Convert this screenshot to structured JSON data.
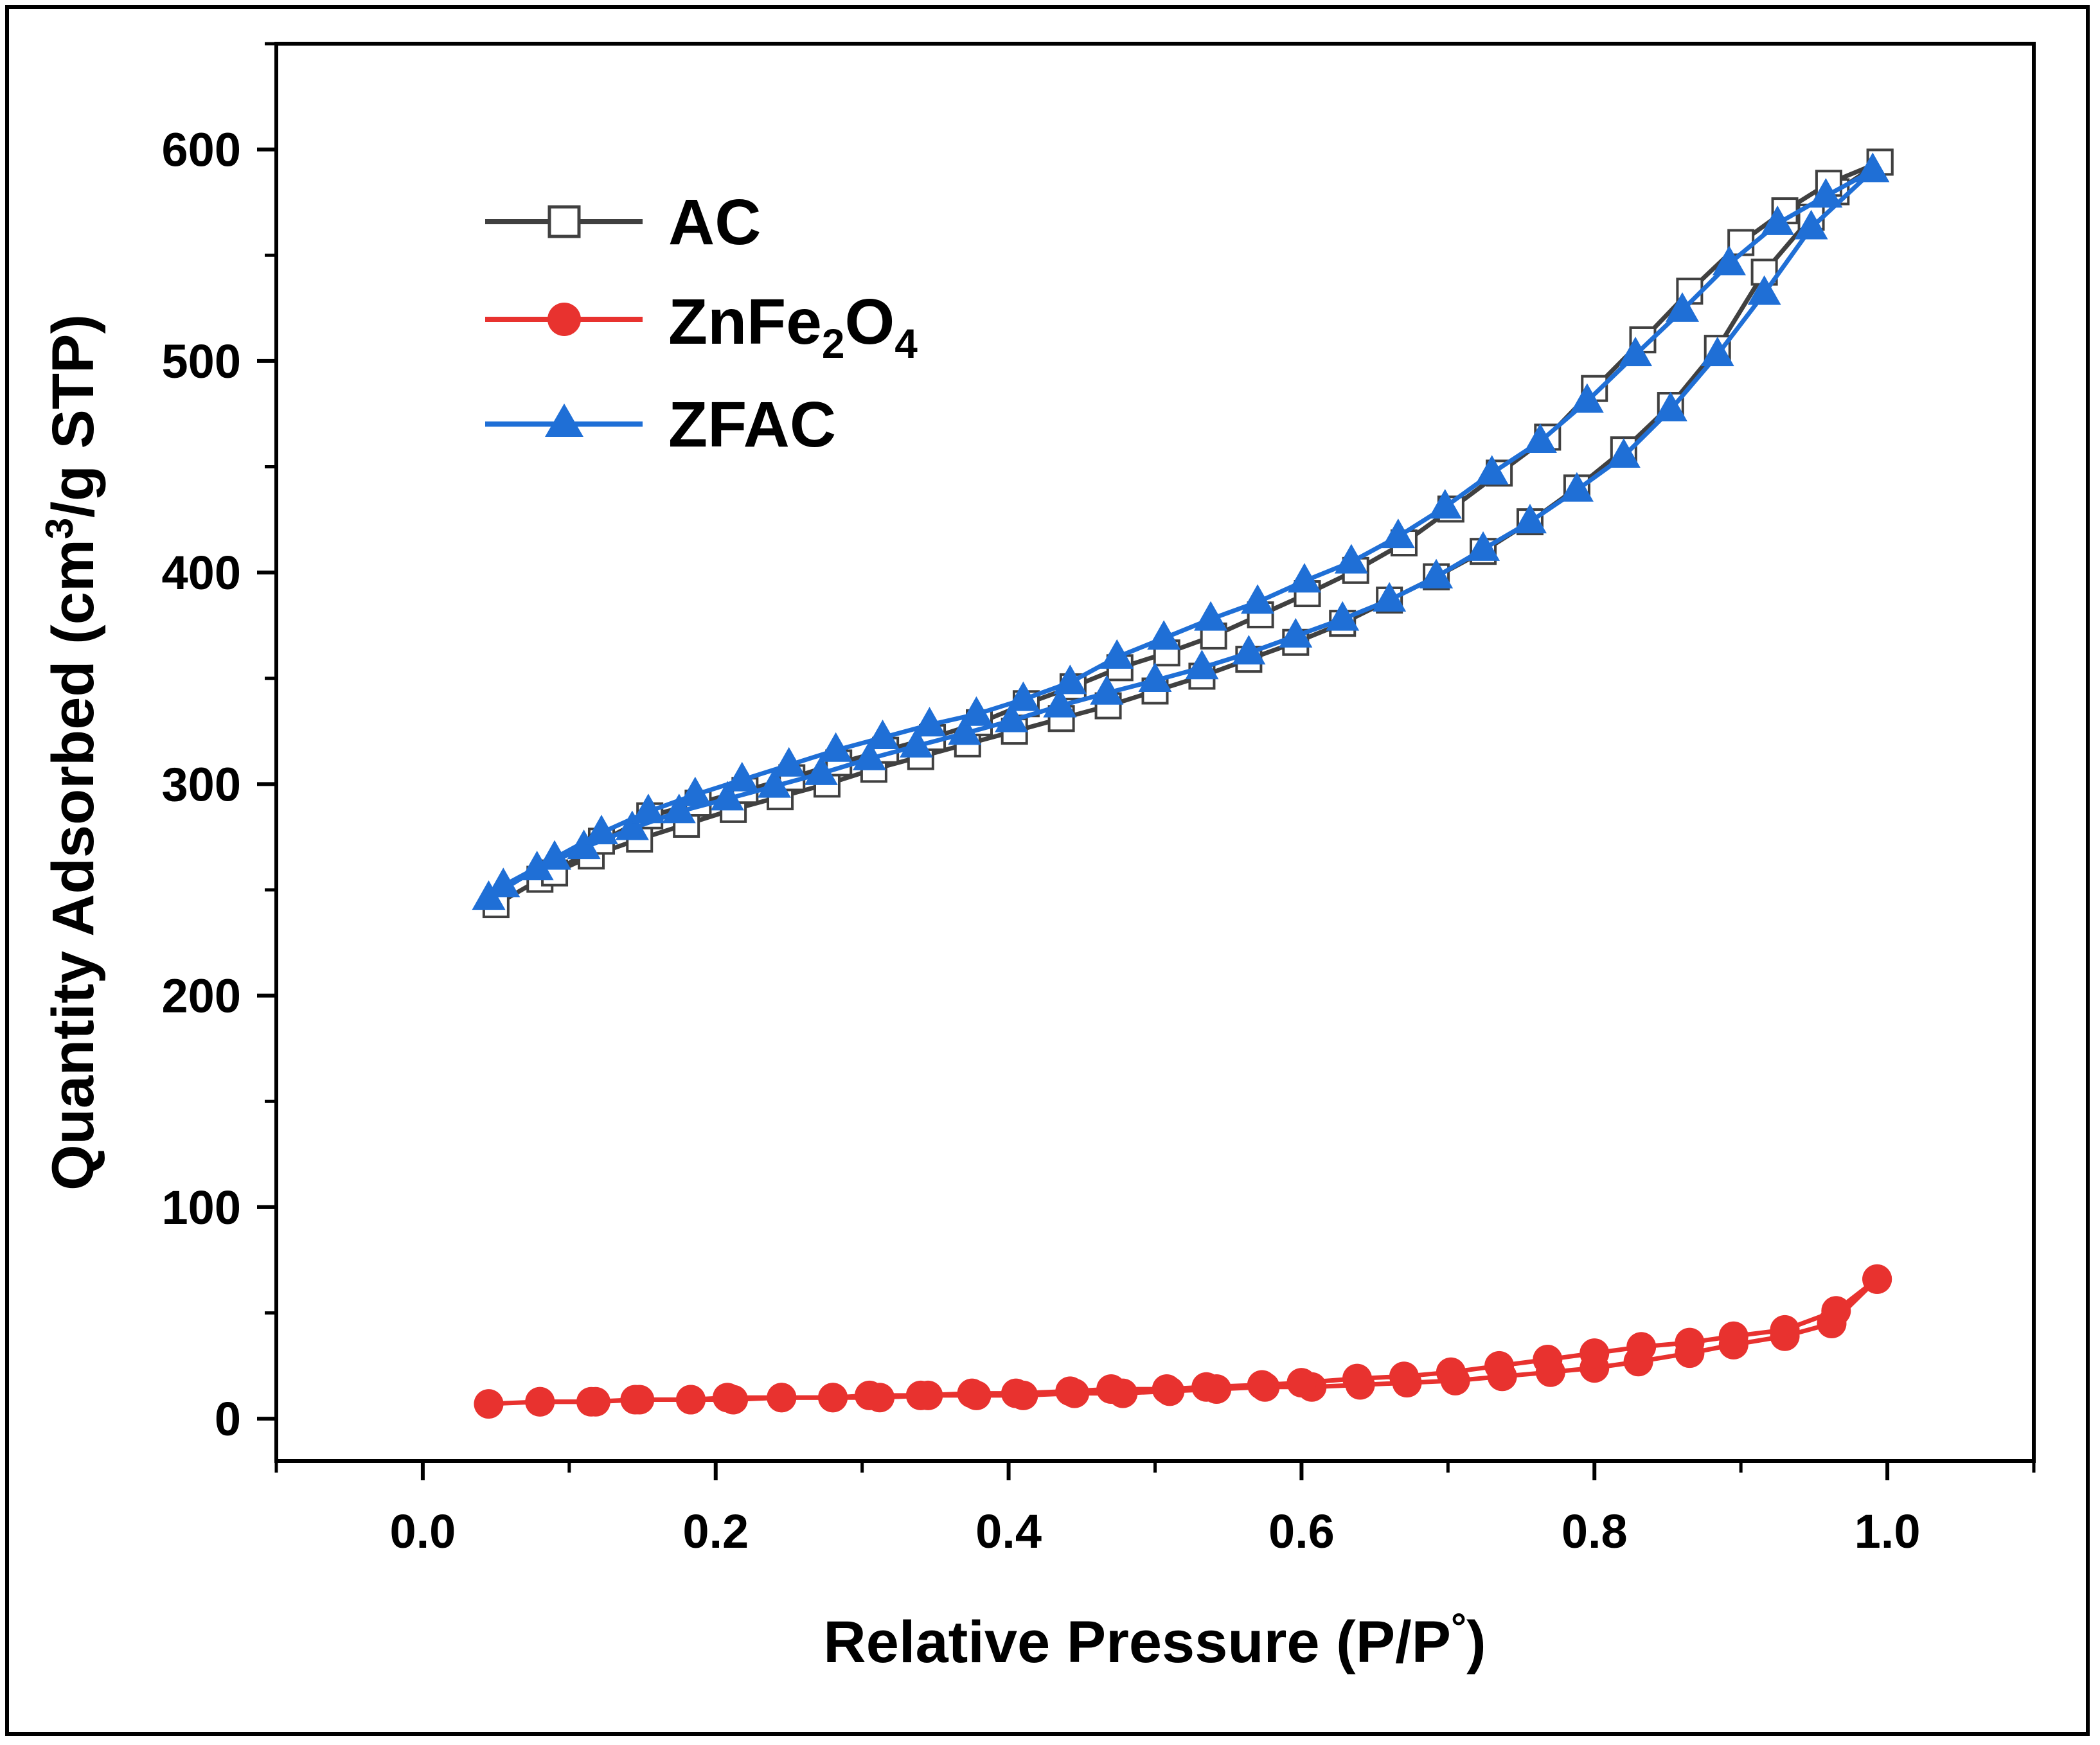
{
  "chart_data": {
    "type": "line",
    "title": "",
    "xlabel": "Relative Pressure (P/P°)",
    "xlabel_parts": {
      "main": "Relative Pressure (P/P",
      "sup": "°",
      "tail": ")"
    },
    "ylabel": "Quantity Adsorbed (cm³/g STP)",
    "ylabel_parts": {
      "main": "Quantity Adsorbed (cm",
      "sup": "3",
      "tail": "/g STP)"
    },
    "xlim": [
      -0.1,
      1.1
    ],
    "ylim": [
      -20,
      650
    ],
    "xticks": [
      0.0,
      0.2,
      0.4,
      0.6,
      0.8,
      1.0
    ],
    "xtick_labels": [
      "0.0",
      "0.2",
      "0.4",
      "0.6",
      "0.8",
      "1.0"
    ],
    "yticks": [
      0,
      100,
      200,
      300,
      400,
      500,
      600
    ],
    "ytick_labels": [
      "0",
      "100",
      "200",
      "300",
      "400",
      "500",
      "600"
    ],
    "grid": false,
    "legend_position": "top-left",
    "series": [
      {
        "name": "AC",
        "legend_label": {
          "main": "AC",
          "sub1": "",
          "mid": "",
          "sub2": ""
        },
        "color": "#404040",
        "marker_color": "#ffffff",
        "marker": "square-open",
        "adsorption": {
          "x": [
            0.05,
            0.08,
            0.115,
            0.148,
            0.18,
            0.212,
            0.244,
            0.276,
            0.308,
            0.34,
            0.372,
            0.404,
            0.436,
            0.468,
            0.5,
            0.532,
            0.564,
            0.596,
            0.628,
            0.66,
            0.692,
            0.724,
            0.756,
            0.788,
            0.82,
            0.852,
            0.884,
            0.916,
            0.948,
            0.965,
            0.995
          ],
          "y": [
            243,
            255,
            266,
            274,
            281,
            288,
            294,
            300,
            307,
            313,
            319,
            325,
            331,
            337,
            344,
            351,
            359,
            367,
            376,
            387,
            398,
            410,
            424,
            440,
            458,
            479,
            506,
            542,
            568,
            580,
            594
          ]
        },
        "desorption": {
          "x": [
            0.995,
            0.96,
            0.93,
            0.9,
            0.865,
            0.833,
            0.8,
            0.768,
            0.735,
            0.702,
            0.67,
            0.637,
            0.604,
            0.572,
            0.54,
            0.508,
            0.476,
            0.444,
            0.412,
            0.38,
            0.348,
            0.316,
            0.284,
            0.252,
            0.22,
            0.188,
            0.155,
            0.122,
            0.09
          ],
          "y": [
            594,
            584,
            571,
            556,
            533,
            510,
            487,
            464,
            447,
            430,
            414,
            401,
            390,
            380,
            370,
            362,
            355,
            346,
            338,
            329,
            322,
            316,
            310,
            303,
            297,
            291,
            285,
            273,
            258
          ]
        }
      },
      {
        "name": "ZnFe2O4",
        "legend_label": {
          "main": "ZnFe",
          "sub1": "2",
          "mid": "O",
          "sub2": "4"
        },
        "color": "#e8322f",
        "marker_color": "#e8322f",
        "marker": "circle",
        "adsorption": {
          "x": [
            0.045,
            0.08,
            0.118,
            0.148,
            0.183,
            0.212,
            0.245,
            0.28,
            0.312,
            0.345,
            0.378,
            0.41,
            0.445,
            0.478,
            0.51,
            0.542,
            0.575,
            0.607,
            0.64,
            0.672,
            0.705,
            0.737,
            0.77,
            0.8,
            0.83,
            0.865,
            0.895,
            0.93,
            0.962,
            0.993
          ],
          "y": [
            7,
            8,
            8,
            9,
            9,
            9,
            10,
            10,
            10,
            11,
            11,
            11,
            12,
            12,
            13,
            14,
            15,
            15,
            16,
            17,
            18,
            20,
            22,
            24,
            27,
            31,
            35,
            39,
            45,
            66
          ]
        },
        "desorption": {
          "x": [
            0.993,
            0.965,
            0.93,
            0.895,
            0.865,
            0.832,
            0.8,
            0.768,
            0.735,
            0.702,
            0.67,
            0.638,
            0.6,
            0.573,
            0.535,
            0.508,
            0.47,
            0.442,
            0.405,
            0.375,
            0.34,
            0.305,
            0.28,
            0.245,
            0.208,
            0.183,
            0.145,
            0.115,
            0.08
          ],
          "y": [
            66,
            51,
            42,
            39,
            36,
            34,
            31,
            28,
            25,
            22,
            20,
            19,
            17,
            16,
            15,
            14,
            14,
            13,
            12,
            12,
            11,
            11,
            10,
            10,
            10,
            9,
            9,
            8,
            8
          ]
        }
      },
      {
        "name": "ZFAC",
        "legend_label": {
          "main": "ZFAC",
          "sub1": "",
          "mid": "",
          "sub2": ""
        },
        "color": "#1f6fd6",
        "marker_color": "#1f6fd6",
        "marker": "triangle",
        "adsorption": {
          "x": [
            0.045,
            0.078,
            0.11,
            0.143,
            0.175,
            0.208,
            0.24,
            0.272,
            0.305,
            0.337,
            0.37,
            0.402,
            0.435,
            0.467,
            0.5,
            0.532,
            0.564,
            0.596,
            0.628,
            0.66,
            0.692,
            0.724,
            0.756,
            0.788,
            0.82,
            0.852,
            0.884,
            0.916,
            0.948,
            0.99
          ],
          "y": [
            246,
            260,
            270,
            279,
            287,
            293,
            299,
            305,
            312,
            318,
            324,
            330,
            337,
            343,
            349,
            355,
            362,
            370,
            378,
            387,
            398,
            411,
            424,
            439,
            455,
            477,
            503,
            532,
            563,
            590
          ]
        },
        "desorption": {
          "x": [
            0.99,
            0.958,
            0.925,
            0.892,
            0.86,
            0.828,
            0.795,
            0.763,
            0.73,
            0.698,
            0.666,
            0.634,
            0.602,
            0.57,
            0.538,
            0.506,
            0.474,
            0.442,
            0.41,
            0.378,
            0.346,
            0.314,
            0.282,
            0.25,
            0.218,
            0.186,
            0.154,
            0.122,
            0.09,
            0.055
          ],
          "y": [
            590,
            578,
            565,
            546,
            524,
            503,
            481,
            462,
            447,
            431,
            417,
            405,
            396,
            386,
            378,
            369,
            360,
            348,
            340,
            333,
            328,
            322,
            316,
            309,
            302,
            295,
            287,
            277,
            265,
            252
          ]
        }
      }
    ]
  }
}
